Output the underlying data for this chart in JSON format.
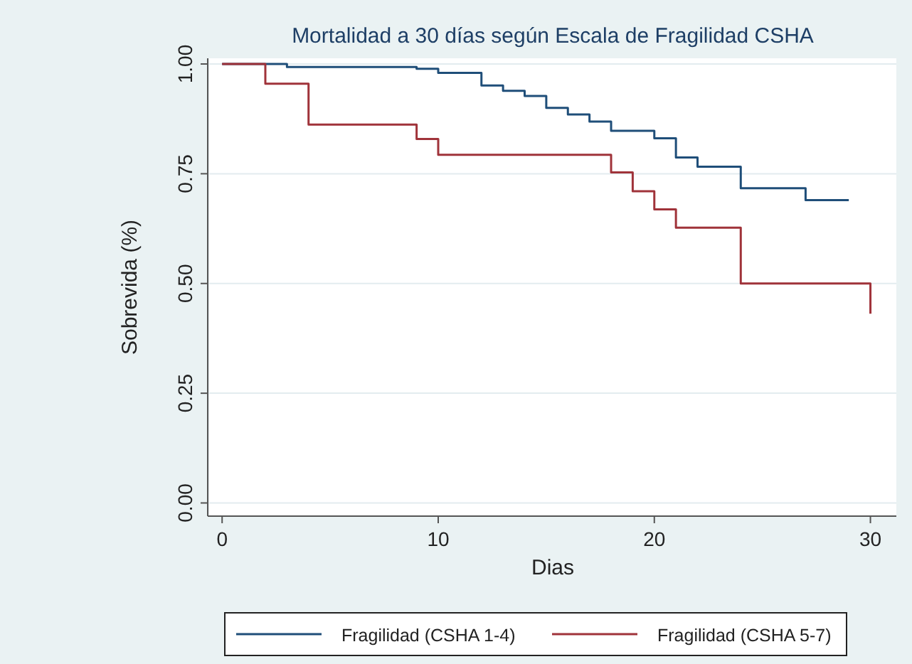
{
  "chart_data": {
    "type": "step",
    "title": "Mortalidad a 30 días según Escala de Fragilidad CSHA",
    "xlabel": "Dias",
    "ylabel": "Sobrevida (%)",
    "series": [
      {
        "name": "Fragilidad (CSHA 1-4)",
        "color": "#1f4e79",
        "x": [
          0,
          3,
          9,
          10,
          12,
          13,
          14,
          15,
          16,
          17,
          18,
          20,
          21,
          22,
          24,
          27,
          29
        ],
        "values": [
          1.0,
          0.993,
          0.989,
          0.98,
          0.951,
          0.939,
          0.927,
          0.9,
          0.885,
          0.869,
          0.848,
          0.831,
          0.787,
          0.766,
          0.717,
          0.69,
          0.69
        ]
      },
      {
        "name": "Fragilidad (CSHA 5-7)",
        "color": "#a0333a",
        "x": [
          0,
          2,
          4,
          9,
          10,
          18,
          19,
          20,
          21,
          24,
          30
        ],
        "values": [
          1.0,
          0.955,
          0.862,
          0.829,
          0.793,
          0.753,
          0.71,
          0.669,
          0.627,
          0.5,
          0.431
        ]
      }
    ],
    "xlim": [
      -0.6,
      31.2
    ],
    "ylim": [
      -0.03,
      1.013
    ],
    "xticks": [
      0,
      10,
      20,
      30
    ],
    "yticks": [
      {
        "value": 0,
        "label": "0.00"
      },
      {
        "value": 0.25,
        "label": "0.25"
      },
      {
        "value": 0.5,
        "label": "0.50"
      },
      {
        "value": 0.75,
        "label": "0.75"
      },
      {
        "value": 1,
        "label": "1.00"
      }
    ],
    "grid": "y",
    "legend": "bottom"
  }
}
